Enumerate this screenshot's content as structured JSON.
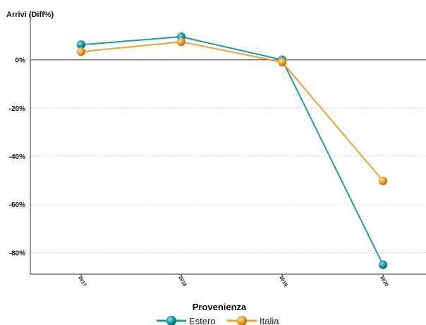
{
  "chart_data": {
    "type": "line",
    "ylabel": "Arrivi (Diff%)",
    "categories": [
      "2017",
      "2018",
      "2019",
      "2020"
    ],
    "ylim": [
      -89,
      19
    ],
    "yticks": [
      0,
      -20,
      -40,
      -60,
      -80
    ],
    "ytick_labels": [
      "0%",
      "-20%",
      "-40%",
      "-60%",
      "-80%"
    ],
    "grid": "horizontal dashed",
    "legend_title": "Provenienza",
    "legend_position": "bottom",
    "series": [
      {
        "name": "Estero",
        "color": "#1f9aa8",
        "values": [
          6.3,
          9.6,
          0.0,
          -85.1
        ]
      },
      {
        "name": "Italia",
        "color": "#f0a030",
        "values": [
          3.4,
          7.5,
          -0.9,
          -50.3
        ]
      }
    ]
  }
}
